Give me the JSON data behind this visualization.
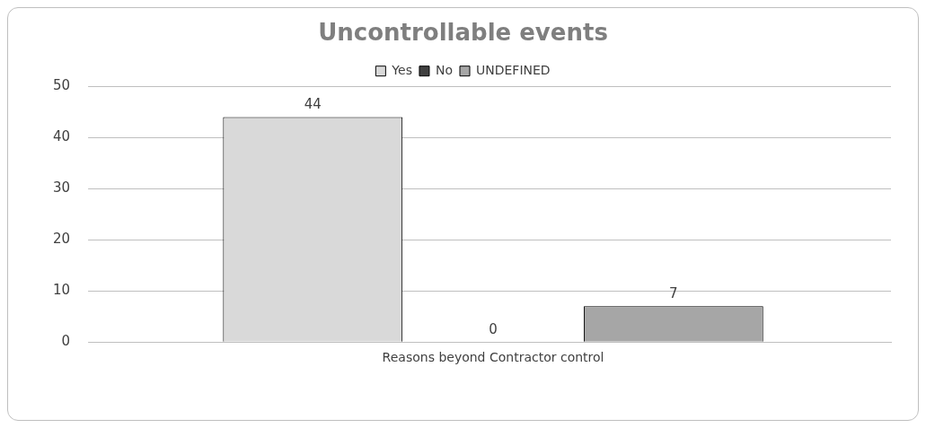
{
  "chart_data": {
    "type": "bar",
    "title": "Uncontrollable events",
    "categories": [
      "Reasons beyond Contractor control"
    ],
    "series": [
      {
        "name": "Yes",
        "color": "#d9d9d9",
        "values": [
          44
        ]
      },
      {
        "name": "No",
        "color": "#404040",
        "values": [
          0
        ]
      },
      {
        "name": "UNDEFINED",
        "color": "#a6a6a6",
        "values": [
          7
        ]
      }
    ],
    "ylim": [
      0,
      50
    ],
    "yticks": [
      0,
      10,
      20,
      30,
      40,
      50
    ],
    "grid": "y",
    "legend": "top",
    "data_labels": true
  }
}
